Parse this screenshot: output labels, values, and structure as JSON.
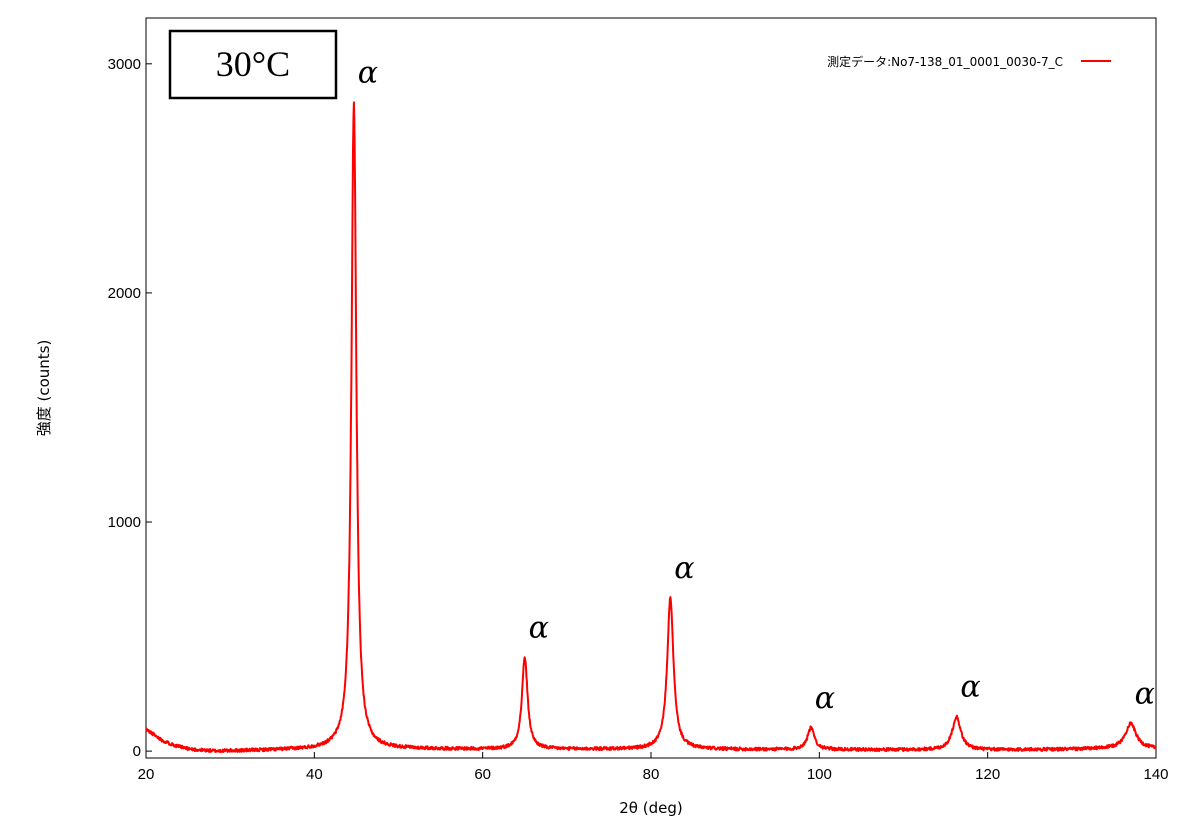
{
  "chart_data": {
    "type": "line",
    "xlabel": "2θ (deg)",
    "ylabel": "強度 (counts)",
    "xlim": [
      20,
      140
    ],
    "ylim": [
      -30,
      3200
    ],
    "xticks": [
      20,
      40,
      60,
      80,
      100,
      120,
      140
    ],
    "yticks": [
      0,
      1000,
      2000,
      3000
    ],
    "grid": false,
    "legend_position": "top-right",
    "temperature_label": "30°C",
    "series": [
      {
        "name": "測定データ:No7-138_01_0001_0030-7_C",
        "color": "#ff0000",
        "background": [
          [
            20,
            95
          ],
          [
            21,
            70
          ],
          [
            22,
            45
          ],
          [
            23,
            30
          ],
          [
            24,
            18
          ],
          [
            25,
            10
          ],
          [
            26,
            5
          ],
          [
            28,
            0
          ],
          [
            32,
            2
          ],
          [
            40,
            8
          ],
          [
            43,
            12
          ],
          [
            48,
            10
          ],
          [
            60,
            8
          ],
          [
            80,
            8
          ],
          [
            100,
            6
          ],
          [
            120,
            5
          ],
          [
            130,
            8
          ],
          [
            136,
            12
          ],
          [
            140,
            10
          ]
        ],
        "peaks": [
          {
            "x": 44.7,
            "y": 2820,
            "width": 0.35,
            "label": "α"
          },
          {
            "x": 65.0,
            "y": 400,
            "width": 0.4,
            "label": "α"
          },
          {
            "x": 82.3,
            "y": 660,
            "width": 0.45,
            "label": "α"
          },
          {
            "x": 99.0,
            "y": 95,
            "width": 0.5,
            "label": "α"
          },
          {
            "x": 116.3,
            "y": 145,
            "width": 0.6,
            "label": "α"
          },
          {
            "x": 137.0,
            "y": 110,
            "width": 0.75,
            "label": "α"
          }
        ]
      }
    ]
  }
}
